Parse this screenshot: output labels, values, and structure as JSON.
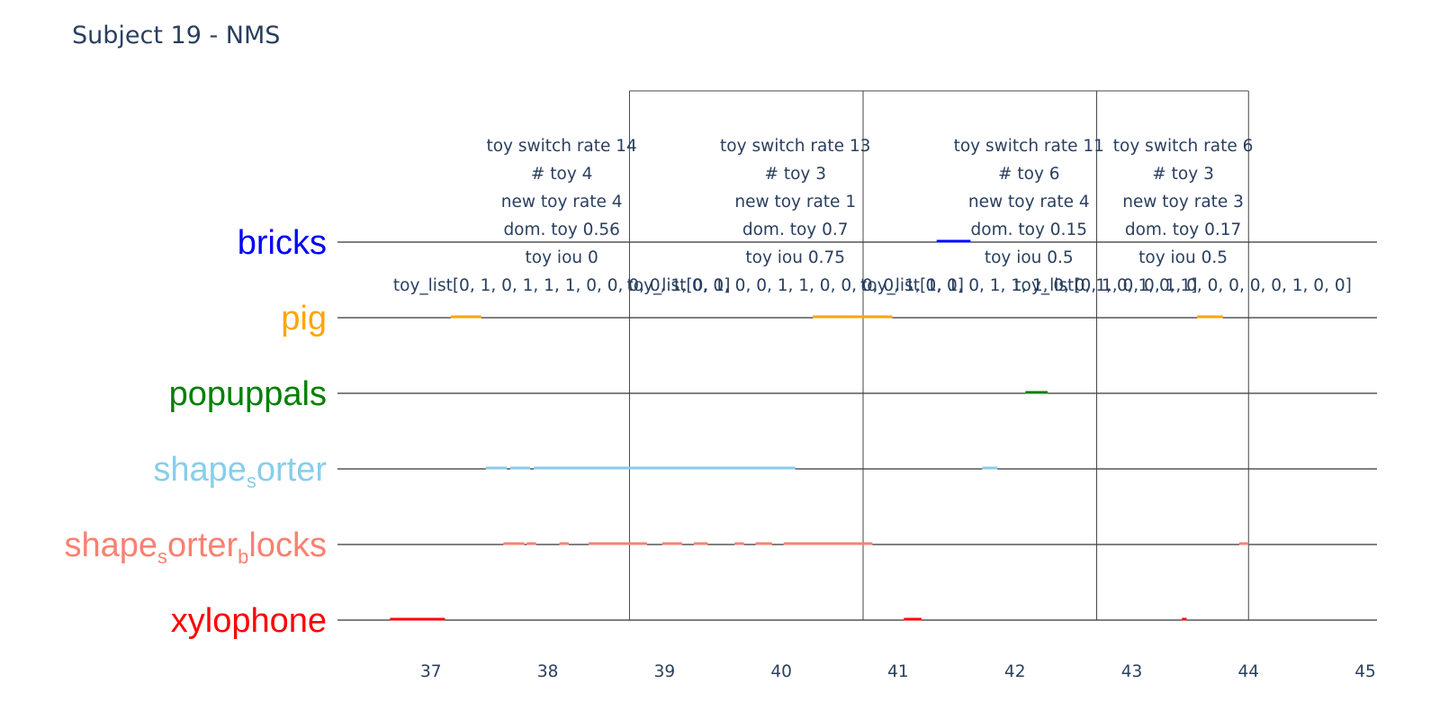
{
  "chart_data": {
    "type": "timeline",
    "title": "Subject 19 - NMS",
    "xlim": [
      36.2,
      45.1
    ],
    "x_ticks": [
      37,
      38,
      39,
      40,
      41,
      42,
      43,
      44,
      45
    ],
    "categories": [
      {
        "name": "bricks",
        "label_parts": [
          {
            "t": "bricks",
            "sub": false
          }
        ],
        "color": "#0000ff"
      },
      {
        "name": "pig",
        "label_parts": [
          {
            "t": "pig",
            "sub": false
          }
        ],
        "color": "#ffa500"
      },
      {
        "name": "popuppals",
        "label_parts": [
          {
            "t": "popuppals",
            "sub": false
          }
        ],
        "color": "#008000"
      },
      {
        "name": "shape_sorter",
        "label_parts": [
          {
            "t": "shape",
            "sub": false
          },
          {
            "t": "s",
            "sub": true
          },
          {
            "t": "orter",
            "sub": false
          }
        ],
        "color": "#87ceeb"
      },
      {
        "name": "shape_sorter_blocks",
        "label_parts": [
          {
            "t": "shape",
            "sub": false
          },
          {
            "t": "s",
            "sub": true
          },
          {
            "t": "orter",
            "sub": false
          },
          {
            "t": "b",
            "sub": true
          },
          {
            "t": "locks",
            "sub": false
          }
        ],
        "color": "#fa8072"
      },
      {
        "name": "xylophone",
        "label_parts": [
          {
            "t": "xylophone",
            "sub": false
          }
        ],
        "color": "#ff0000"
      }
    ],
    "segments": [
      {
        "toy": "bricks",
        "start": 41.33,
        "end": 41.62
      },
      {
        "toy": "pig",
        "start": 37.17,
        "end": 37.43
      },
      {
        "toy": "pig",
        "start": 40.27,
        "end": 40.95
      },
      {
        "toy": "pig",
        "start": 43.56,
        "end": 43.78
      },
      {
        "toy": "popuppals",
        "start": 42.09,
        "end": 42.28
      },
      {
        "toy": "shape_sorter",
        "start": 37.47,
        "end": 37.65
      },
      {
        "toy": "shape_sorter",
        "start": 37.68,
        "end": 37.85
      },
      {
        "toy": "shape_sorter",
        "start": 37.88,
        "end": 40.12
      },
      {
        "toy": "shape_sorter",
        "start": 41.72,
        "end": 41.85
      },
      {
        "toy": "shape_sorter_blocks",
        "start": 37.62,
        "end": 37.8
      },
      {
        "toy": "shape_sorter_blocks",
        "start": 37.82,
        "end": 37.9
      },
      {
        "toy": "shape_sorter_blocks",
        "start": 38.1,
        "end": 38.18
      },
      {
        "toy": "shape_sorter_blocks",
        "start": 38.35,
        "end": 38.85
      },
      {
        "toy": "shape_sorter_blocks",
        "start": 38.98,
        "end": 39.15
      },
      {
        "toy": "shape_sorter_blocks",
        "start": 39.25,
        "end": 39.37
      },
      {
        "toy": "shape_sorter_blocks",
        "start": 39.6,
        "end": 39.68
      },
      {
        "toy": "shape_sorter_blocks",
        "start": 39.78,
        "end": 39.92
      },
      {
        "toy": "shape_sorter_blocks",
        "start": 40.02,
        "end": 40.78
      },
      {
        "toy": "shape_sorter_blocks",
        "start": 43.92,
        "end": 44.0
      },
      {
        "toy": "xylophone",
        "start": 36.65,
        "end": 37.12
      },
      {
        "toy": "xylophone",
        "start": 41.05,
        "end": 41.2
      },
      {
        "toy": "xylophone",
        "start": 43.43,
        "end": 43.47
      }
    ],
    "window_boundaries": [
      38.7,
      40.7,
      42.7,
      44.0
    ],
    "annotations": [
      {
        "x": 38.12,
        "lines": [
          "toy switch rate 14",
          "# toy 4",
          "new toy rate 4",
          "dom. toy 0.56",
          "toy iou 0",
          "toy_list[0, 1, 0, 1, 1, 1, 0, 0, 0, 0, 1, 0, 0]"
        ]
      },
      {
        "x": 40.12,
        "lines": [
          "toy switch rate 13",
          "# toy 3",
          "new toy rate 1",
          "dom. toy 0.7",
          "toy iou 0.75",
          "toy_list[0, 1, 0, 0, 1, 1, 0, 0, 0, 0, 1, 0, 0]"
        ]
      },
      {
        "x": 42.12,
        "lines": [
          "toy switch rate 11",
          "# toy 6",
          "new toy rate 4",
          "dom. toy 0.15",
          "toy iou 0.5",
          "toy_list[1, 1, 0, 1, 1, 1, 0, 0, 1, 0, 1, 0, 1]"
        ]
      },
      {
        "x": 43.44,
        "lines": [
          "toy switch rate 6",
          "# toy 3",
          "new toy rate 3",
          "dom. toy 0.17",
          "toy iou 0.5",
          "toy_list[0, 1, 0, 0, 1, 0, 0, 0, 0, 0, 1, 0, 0]"
        ]
      }
    ]
  }
}
